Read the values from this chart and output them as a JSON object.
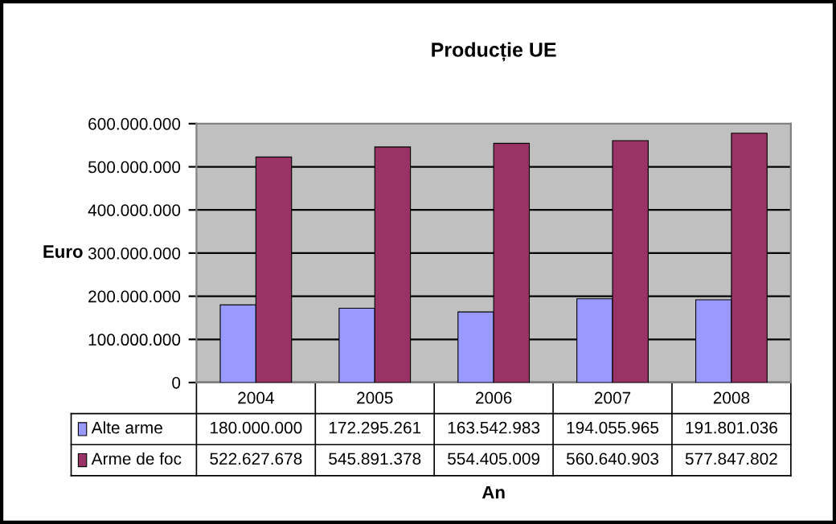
{
  "chart_data": {
    "type": "bar",
    "title": "Producție UE",
    "xlabel": "An",
    "ylabel": "Euro",
    "categories": [
      "2004",
      "2005",
      "2006",
      "2007",
      "2008"
    ],
    "series": [
      {
        "name": "Alte arme",
        "color": "#9999ff",
        "values": [
          180000000,
          172295261,
          163542983,
          194055965,
          191801036
        ],
        "value_labels": [
          "180.000.000",
          "172.295.261",
          "163.542.983",
          "194.055.965",
          "191.801.036"
        ]
      },
      {
        "name": "Arme de foc",
        "color": "#993366",
        "values": [
          522627678,
          545891378,
          554405009,
          560640903,
          577847802
        ],
        "value_labels": [
          "522.627.678",
          "545.891.378",
          "554.405.009",
          "560.640.903",
          "577.847.802"
        ]
      }
    ],
    "ylim": [
      0,
      600000000
    ],
    "yticks": [
      0,
      {
        "value": 100000000,
        "label": "100.000.000"
      },
      {
        "value": 200000000,
        "label": "200.000.000"
      },
      {
        "value": 300000000,
        "label": "300.000.000"
      },
      {
        "value": 400000000,
        "label": "400.000.000"
      },
      {
        "value": 500000000,
        "label": "500.000.000"
      },
      {
        "value": 600000000,
        "label": "600.000.000"
      }
    ],
    "grid": "y",
    "legend": "bottom"
  }
}
